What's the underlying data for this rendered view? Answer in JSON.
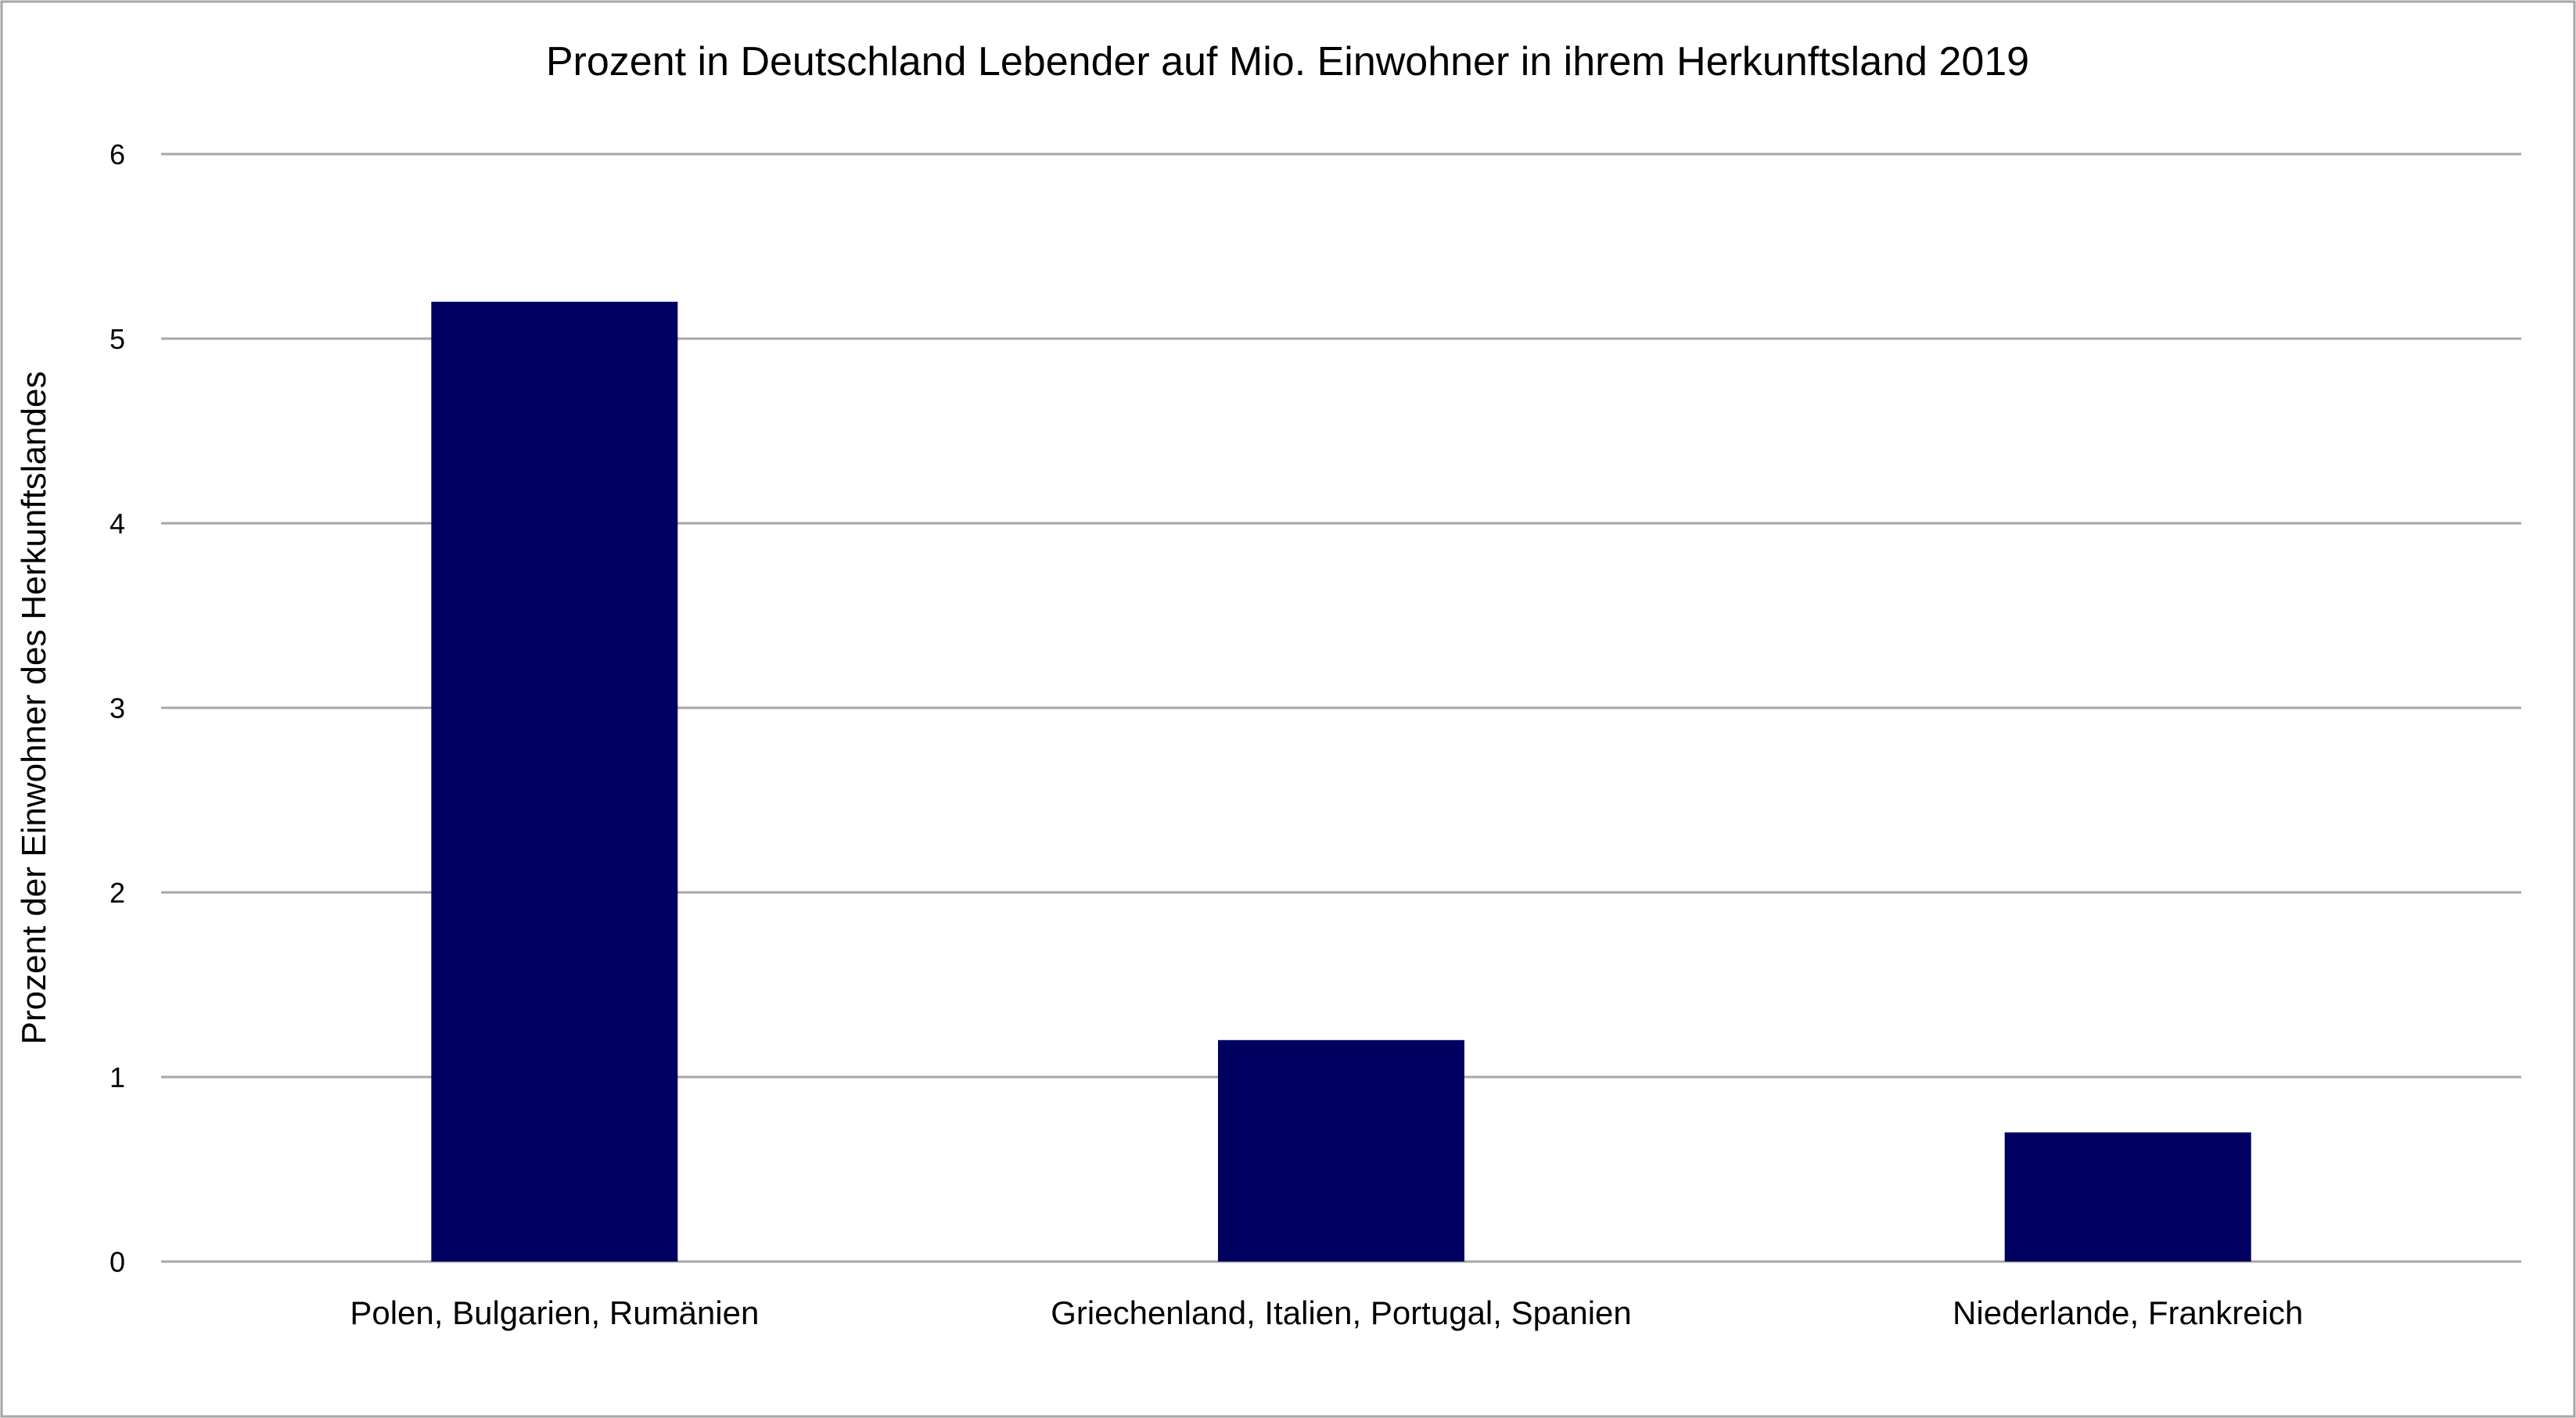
{
  "chart_data": {
    "type": "bar",
    "title": "Prozent in Deutschland Lebender auf Mio. Einwohner in ihrem Herkunftsland 2019",
    "xlabel": "",
    "ylabel": "Prozent der Einwohner des Herkunftslandes",
    "categories": [
      "Polen, Bulgarien, Rumänien",
      "Griechenland, Italien, Portugal, Spanien",
      "Niederlande, Frankreich"
    ],
    "values": [
      5.2,
      1.2,
      0.7
    ],
    "ylim": [
      0,
      6
    ],
    "yticks": [
      "0",
      "1",
      "2",
      "3",
      "4",
      "5",
      "6"
    ],
    "grid": true,
    "legend": "none",
    "colors": {
      "bar": "#000060",
      "grid": "#a6a6a6",
      "border": "#a6a6a6"
    }
  }
}
